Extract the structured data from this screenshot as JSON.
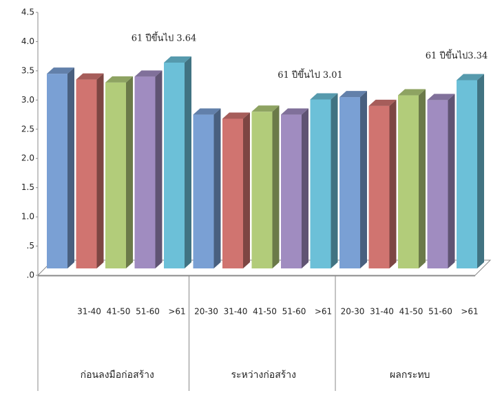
{
  "chart_data": {
    "type": "bar3d",
    "ylim": [
      0,
      4.5
    ],
    "yticks": [
      {
        "value": 0,
        "label": ".0"
      },
      {
        "value": 0.5,
        "label": ".5"
      },
      {
        "value": 1,
        "label": "1.0"
      },
      1.5,
      {
        "value": 2,
        "label": "2.0"
      },
      2.5,
      {
        "value": 3,
        "label": "3.0"
      },
      3.5,
      {
        "value": 4,
        "label": "4.0"
      },
      4.5
    ],
    "colors": [
      "#7aa0d4",
      "#d07470",
      "#b2cc7a",
      "#a08cc0",
      "#6cc0d8"
    ],
    "groups": [
      {
        "name": "ก่อนลงมือก่อสร้าง",
        "labels": [
          null,
          "31-40",
          "41-50",
          "51-60",
          ">61"
        ],
        "values": [
          3.45,
          3.35,
          3.3,
          3.4,
          3.64
        ],
        "annotation": "61 ปีขึ้นไป 3.64"
      },
      {
        "name": "ระหว่างก่อสร้าง",
        "labels": [
          "20-30",
          "31-40",
          "41-50",
          "51-60",
          ">61"
        ],
        "values": [
          2.75,
          2.68,
          2.8,
          2.75,
          3.01
        ],
        "annotation": "61 ปีขึ้นไป 3.01"
      },
      {
        "name": "ผลกระทบ",
        "labels": [
          "20-30",
          "31-40",
          "41-50",
          "51-60",
          ">61"
        ],
        "values": [
          3.05,
          2.9,
          3.08,
          3.0,
          3.34
        ],
        "annotation": "61 ปีขึ้นไป3.34"
      }
    ]
  }
}
